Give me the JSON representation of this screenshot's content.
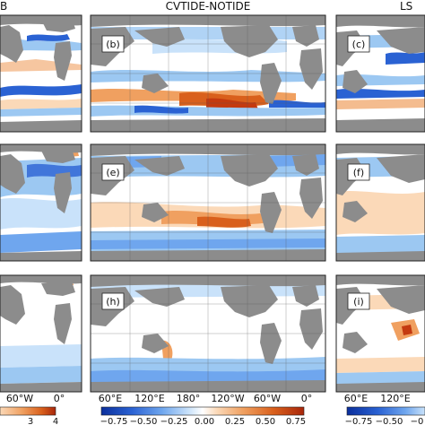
{
  "chart_data": {
    "type": "heatmap",
    "column_titles": [
      "B",
      "CVTIDE-NOTIDE",
      "LS"
    ],
    "panel_labels": [
      "(b)",
      "(c)",
      "(e)",
      "(f)",
      "(h)",
      "(i)"
    ],
    "x_ticks_center": [
      "60°E",
      "120°E",
      "180°",
      "120°W",
      "60°W",
      "0°"
    ],
    "x_ticks_left": [
      "60°W",
      "0°"
    ],
    "x_ticks_right": [
      "60°E",
      "120°E"
    ],
    "colorbar_center": {
      "ticks": [
        "−0.75",
        "−0.50",
        "−0.25",
        "0.00",
        "0.25",
        "0.50",
        "0.75"
      ],
      "range": [
        -0.75,
        0.75
      ],
      "colors": [
        "#0b2f9c",
        "#2a62d3",
        "#6fa6ee",
        "#c9e2fa",
        "#ffffff",
        "#fbd9b8",
        "#f0a060",
        "#d9601c",
        "#a8260a"
      ]
    },
    "colorbar_left": {
      "ticks": [
        "3",
        "4"
      ],
      "colors": [
        "#fbd9b8",
        "#f0a060",
        "#d9601c",
        "#a8260a"
      ]
    },
    "colorbar_right": {
      "ticks": [
        "−0.75",
        "−0.50",
        "−0"
      ],
      "colors": [
        "#0b2f9c",
        "#2a62d3",
        "#6fa6ee",
        "#c9e2fa"
      ]
    },
    "colors": {
      "land": "#8c8c8c",
      "ocean": "#ffffff",
      "blue_strong": "#2a62d3",
      "blue_light": "#9cc8f2",
      "orange": "#e8823a",
      "red": "#c43a10"
    }
  }
}
